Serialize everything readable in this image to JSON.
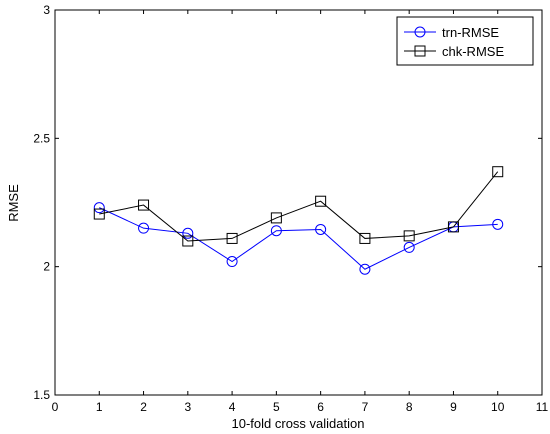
{
  "chart_data": {
    "type": "line",
    "title": "",
    "xlabel": "10-fold cross validation",
    "ylabel": "RMSE",
    "xlim": [
      0,
      11
    ],
    "ylim": [
      1.5,
      3
    ],
    "xticks": [
      0,
      1,
      2,
      3,
      4,
      5,
      6,
      7,
      8,
      9,
      10,
      11
    ],
    "yticks": [
      1.5,
      2,
      2.5,
      3
    ],
    "xtick_labels": [
      "0",
      "1",
      "2",
      "3",
      "4",
      "5",
      "6",
      "7",
      "8",
      "9",
      "10",
      "11"
    ],
    "ytick_labels": [
      "1.5",
      "2",
      "2.5",
      "3"
    ],
    "grid": false,
    "legend_position": "top-right",
    "x": [
      1,
      2,
      3,
      4,
      5,
      6,
      7,
      8,
      9,
      10
    ],
    "series": [
      {
        "name": "trn-RMSE",
        "color": "#0000ff",
        "marker": "circle",
        "values": [
          2.23,
          2.15,
          2.13,
          2.02,
          2.14,
          2.145,
          1.99,
          2.075,
          2.155,
          2.165
        ]
      },
      {
        "name": "chk-RMSE",
        "color": "#000000",
        "marker": "square",
        "values": [
          2.205,
          2.24,
          2.1,
          2.11,
          2.19,
          2.255,
          2.11,
          2.12,
          2.155,
          2.37
        ]
      }
    ]
  }
}
